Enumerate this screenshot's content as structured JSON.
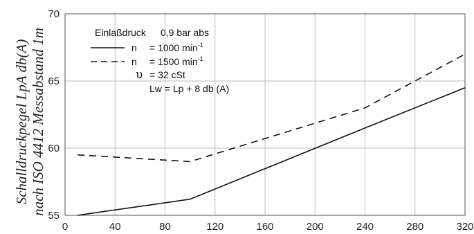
{
  "chart_data": {
    "type": "line",
    "xlim": [
      0,
      320
    ],
    "ylim": [
      55,
      70
    ],
    "x_ticks": [
      "0",
      "40",
      "80",
      "120",
      "160",
      "200",
      "240",
      "280",
      "320"
    ],
    "y_ticks": [
      "55",
      "60",
      "65",
      "70"
    ],
    "ylabel_line1": "Schalldruckpegel LpA db(A)",
    "ylabel_line2": "nach ISO 4412 Messabstand 1m",
    "grid": true,
    "legend": {
      "title_label": "Einlaßdruck",
      "title_value": "0,9 bar abs",
      "entries": [
        {
          "symbol": "n",
          "text": "= 1000 min",
          "unit_sup": "-1",
          "style": "solid"
        },
        {
          "symbol": "n",
          "text": "= 1500 min",
          "unit_sup": "-1",
          "style": "dashed"
        }
      ],
      "nu_symbol": "υ",
      "nu_text": "= 32 cSt",
      "formula": "Lw = Lp + 8 db (A)"
    },
    "series": [
      {
        "line_style": "solid",
        "x": [
          10,
          100,
          240,
          320
        ],
        "y": [
          55.0,
          56.2,
          61.5,
          64.5
        ]
      },
      {
        "line_style": "dashed",
        "x": [
          10,
          100,
          240,
          320
        ],
        "y": [
          59.5,
          59.0,
          63.0,
          67.0
        ]
      }
    ]
  }
}
